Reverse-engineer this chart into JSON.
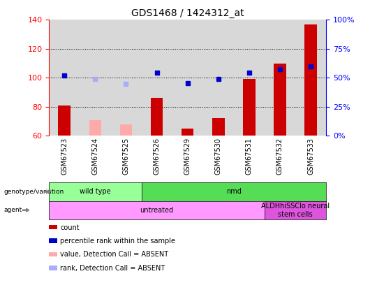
{
  "title": "GDS1468 / 1424312_at",
  "samples": [
    "GSM67523",
    "GSM67524",
    "GSM67525",
    "GSM67526",
    "GSM67529",
    "GSM67530",
    "GSM67531",
    "GSM67532",
    "GSM67533"
  ],
  "count_values": [
    81,
    null,
    null,
    86,
    65,
    72,
    99,
    110,
    137
  ],
  "count_absent_values": [
    null,
    71,
    68,
    null,
    null,
    null,
    null,
    null,
    null
  ],
  "percentile_values": [
    101.5,
    null,
    null,
    103.5,
    96.5,
    99,
    103.5,
    106,
    108
  ],
  "percentile_absent_values": [
    null,
    99,
    96,
    null,
    null,
    null,
    null,
    null,
    null
  ],
  "ylim_left": [
    60,
    140
  ],
  "ylim_right": [
    0,
    100
  ],
  "yticks_left": [
    60,
    80,
    100,
    120,
    140
  ],
  "yticks_right": [
    0,
    25,
    50,
    75,
    100
  ],
  "ytick_labels_right": [
    "0%",
    "25%",
    "50%",
    "75%",
    "100%"
  ],
  "grid_lines": [
    80,
    100,
    120
  ],
  "bar_color": "#cc0000",
  "bar_absent_color": "#ffaaaa",
  "marker_color": "#0000cc",
  "marker_absent_color": "#aaaaff",
  "col_bg_color": "#d8d8d8",
  "genotype_wild": {
    "label": "wild type",
    "color": "#99ff99",
    "start": 0,
    "end": 3
  },
  "genotype_nmd": {
    "label": "nmd",
    "color": "#55dd55",
    "start": 3,
    "end": 9
  },
  "agent_untreated": {
    "label": "untreated",
    "color": "#ff99ff",
    "start": 0,
    "end": 7
  },
  "agent_neural": {
    "label": "ALDHhiSSClo neural\nstem cells",
    "color": "#dd55dd",
    "start": 7,
    "end": 9
  },
  "legend_items": [
    {
      "label": "count",
      "color": "#cc0000"
    },
    {
      "label": "percentile rank within the sample",
      "color": "#0000cc"
    },
    {
      "label": "value, Detection Call = ABSENT",
      "color": "#ffaaaa"
    },
    {
      "label": "rank, Detection Call = ABSENT",
      "color": "#aaaaff"
    }
  ]
}
